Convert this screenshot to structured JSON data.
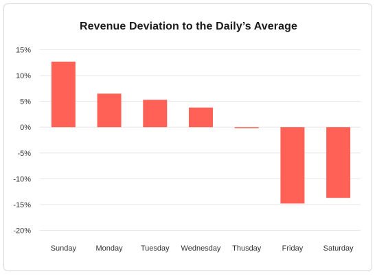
{
  "chart_data": {
    "type": "bar",
    "title": "Revenue Deviation to the Daily’s Average",
    "categories": [
      "Sunday",
      "Monday",
      "Tuesday",
      "Wednesday",
      "Thusday",
      "Friday",
      "Saturday"
    ],
    "values": [
      12.7,
      6.5,
      5.3,
      3.8,
      -0.2,
      -14.8,
      -13.7
    ],
    "ylim": [
      -20,
      15
    ],
    "yticks": [
      "15%",
      "10%",
      "5%",
      "0%",
      "-5%",
      "-10%",
      "-15%",
      "-20%"
    ],
    "ytick_values": [
      15,
      10,
      5,
      0,
      -5,
      -10,
      -15,
      -20
    ],
    "xlabel": "",
    "ylabel": "",
    "grid": true,
    "legend": "none",
    "bar_color": "#ff6157",
    "grid_color": "#e6e6e6"
  }
}
